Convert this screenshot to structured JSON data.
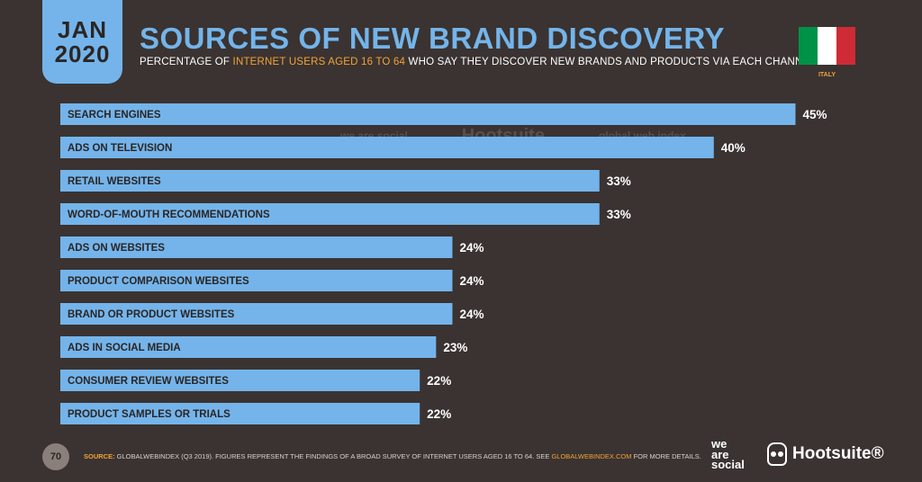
{
  "header": {
    "month": "JAN",
    "year": "2020",
    "title": "SOURCES OF NEW BRAND DISCOVERY",
    "subtitle_pre": "PERCENTAGE OF ",
    "subtitle_highlight": "INTERNET USERS AGED 16 TO 64",
    "subtitle_post": " WHO SAY THEY DISCOVER NEW BRANDS AND PRODUCTS VIA EACH CHANNEL",
    "country": "ITALY"
  },
  "colors": {
    "background": "#3a3331",
    "bar": "#74b4ea",
    "accent": "#f4a238",
    "flag_green": "#009246",
    "flag_white": "#ffffff",
    "flag_red": "#ce2b37"
  },
  "chart_data": {
    "type": "bar",
    "orientation": "horizontal",
    "categories": [
      "SEARCH ENGINES",
      "ADS ON TELEVISION",
      "RETAIL WEBSITES",
      "WORD-OF-MOUTH RECOMMENDATIONS",
      "ADS ON WEBSITES",
      "PRODUCT COMPARISON WEBSITES",
      "BRAND OR PRODUCT WEBSITES",
      "ADS IN SOCIAL MEDIA",
      "CONSUMER REVIEW WEBSITES",
      "PRODUCT SAMPLES OR TRIALS"
    ],
    "values": [
      45,
      40,
      33,
      33,
      24,
      24,
      24,
      23,
      22,
      22
    ],
    "value_labels": [
      "45%",
      "40%",
      "33%",
      "33%",
      "24%",
      "24%",
      "24%",
      "23%",
      "22%",
      "22%"
    ],
    "unit": "%",
    "xlim": [
      0,
      48.5
    ],
    "grid": false,
    "legend": "none"
  },
  "watermark": {
    "brand1": "we are social",
    "brand2": "Hootsuite",
    "brand3": "global web index"
  },
  "footer": {
    "page_number": "70",
    "source_label": "SOURCE:",
    "source_text": " GLOBALWEBINDEX (Q3 2019). FIGURES REPRESENT THE FINDINGS OF A BROAD SURVEY OF INTERNET USERS AGED 16 TO 64. SEE ",
    "source_link": "GLOBALWEBINDEX.COM",
    "source_end": " FOR MORE DETAILS.",
    "logo1_line1": "we",
    "logo1_line2": "are",
    "logo1_line3": "social",
    "logo2": "Hootsuite®"
  }
}
